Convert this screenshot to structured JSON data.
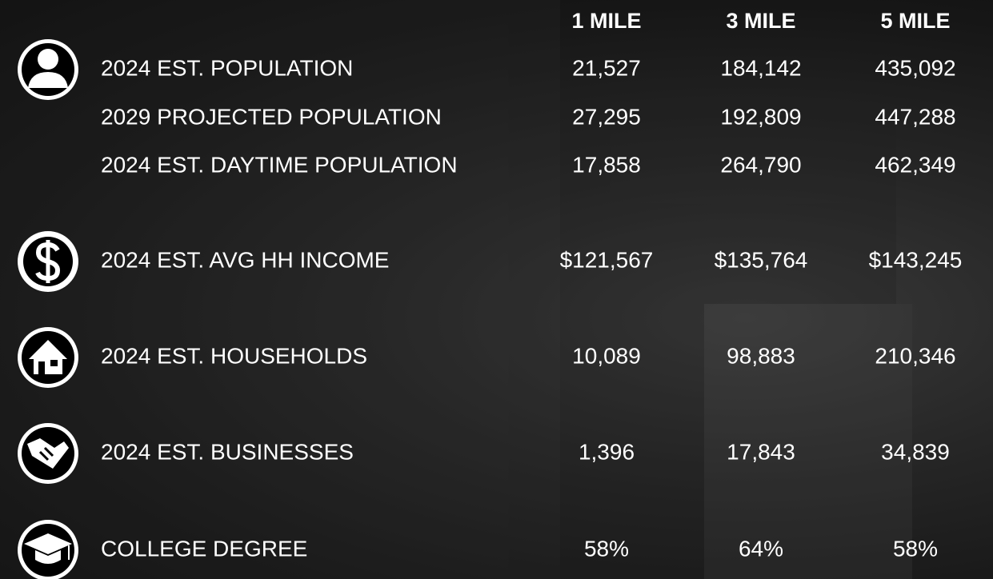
{
  "header": {
    "columns": [
      "1 MILE",
      "3 MILE",
      "5 MILE"
    ]
  },
  "rows": [
    {
      "label": "2024 EST. POPULATION",
      "values": [
        "21,527",
        "184,142",
        "435,092"
      ]
    },
    {
      "label": "2029 PROJECTED POPULATION",
      "values": [
        "27,295",
        "192,809",
        "447,288"
      ]
    },
    {
      "label": "2024 EST. DAYTIME POPULATION",
      "values": [
        "17,858",
        "264,790",
        "462,349"
      ]
    },
    {
      "label": "2024 EST. AVG HH INCOME",
      "values": [
        "$121,567",
        "$135,764",
        "$143,245"
      ]
    },
    {
      "label": "2024 EST. HOUSEHOLDS",
      "values": [
        "10,089",
        "98,883",
        "210,346"
      ]
    },
    {
      "label": "2024 EST. BUSINESSES",
      "values": [
        "1,396",
        "17,843",
        "34,839"
      ]
    },
    {
      "label": "COLLEGE DEGREE",
      "values": [
        "58%",
        "64%",
        "58%"
      ]
    }
  ]
}
